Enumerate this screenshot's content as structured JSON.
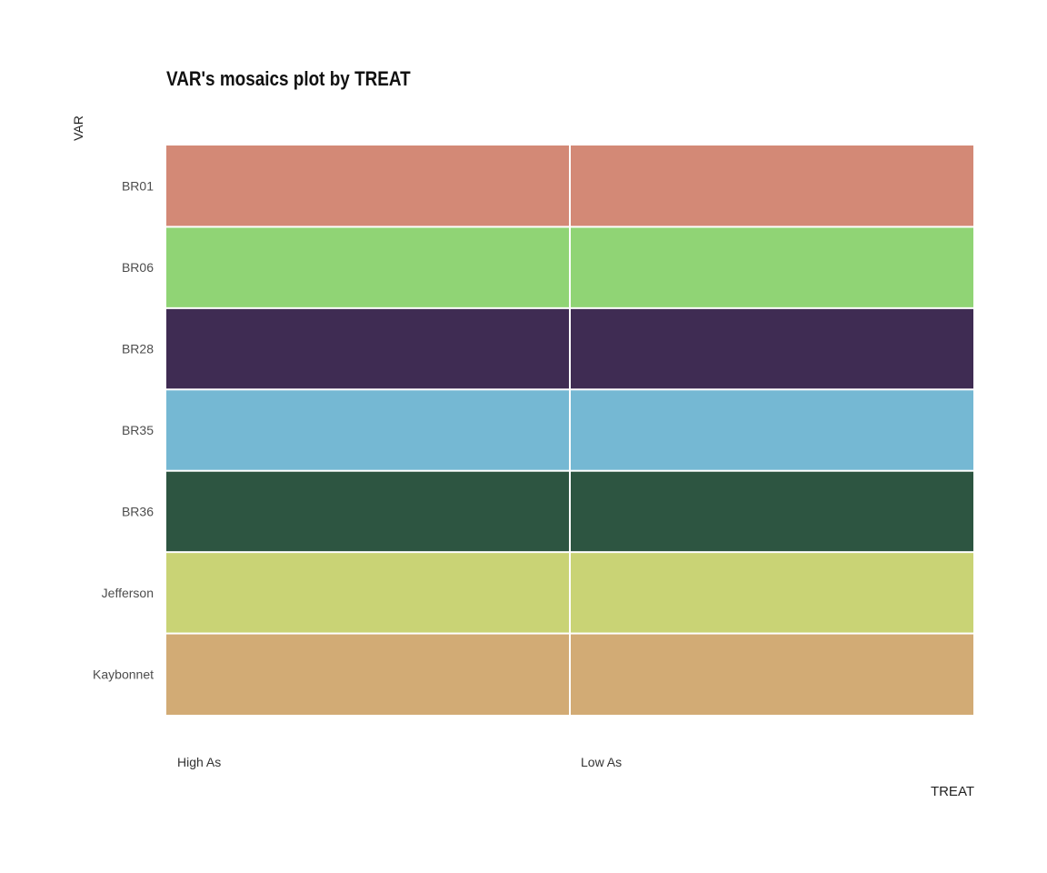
{
  "chart_data": {
    "type": "mosaic",
    "title": "VAR's mosaics plot by TREAT",
    "xlabel": "TREAT",
    "ylabel": "VAR",
    "x_categories": [
      "High As",
      "Low As"
    ],
    "y_categories": [
      "BR01",
      "BR06",
      "BR28",
      "BR35",
      "BR36",
      "Jefferson",
      "Kaybonnet"
    ],
    "x_proportions": [
      0.5,
      0.5
    ],
    "y_proportions": {
      "High As": [
        0.142857,
        0.142857,
        0.142857,
        0.142857,
        0.142857,
        0.142857,
        0.142857
      ],
      "Low As": [
        0.142857,
        0.142857,
        0.142857,
        0.142857,
        0.142857,
        0.142857,
        0.142857
      ]
    },
    "colors": {
      "BR01": "#d38976",
      "BR06": "#90d475",
      "BR28": "#3f2c53",
      "BR35": "#75b8d3",
      "BR36": "#2d5541",
      "Jefferson": "#c9d375",
      "Kaybonnet": "#d2ab75"
    },
    "legend": "none",
    "grid": false
  }
}
